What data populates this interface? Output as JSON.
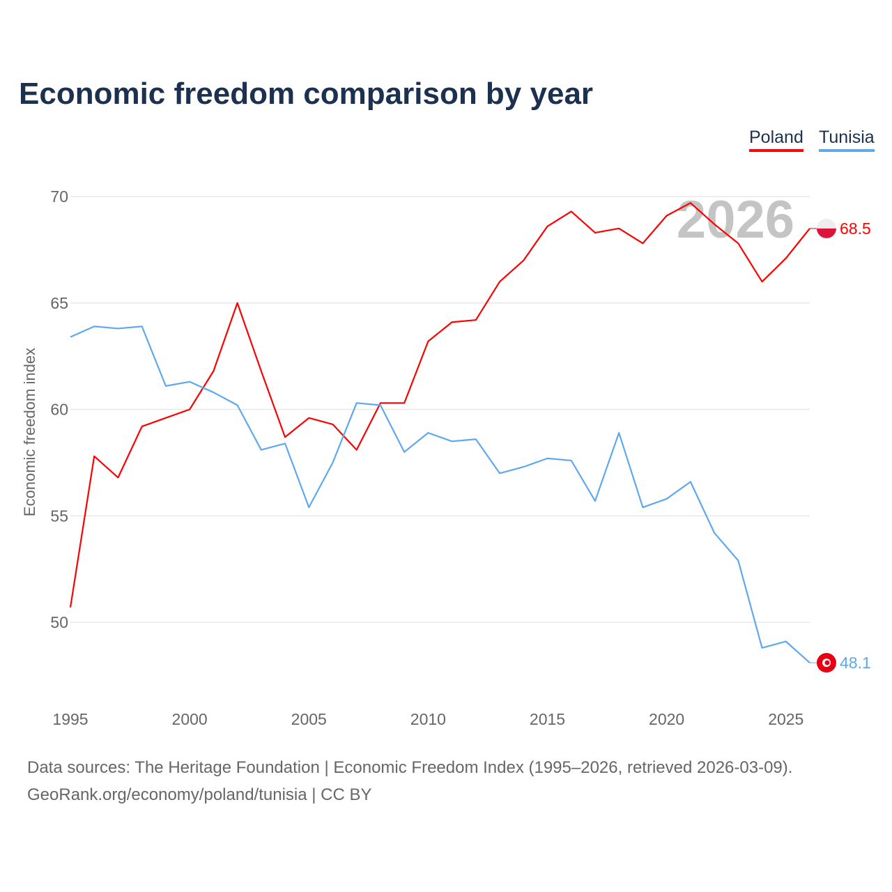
{
  "title": "Economic freedom comparison by year",
  "legend": {
    "poland": "Poland",
    "tunisia": "Tunisia"
  },
  "year_watermark": "2026",
  "end_labels": {
    "poland": "68.5",
    "tunisia": "48.1"
  },
  "source_line1": "Data sources: The Heritage Foundation | Economic Freedom Index (1995–2026, retrieved 2026-03-09).",
  "source_line2": "GeoRank.org/economy/poland/tunisia | CC BY",
  "chart_data": {
    "type": "line",
    "title": "Economic freedom comparison by year",
    "xlabel": "",
    "ylabel": "Economic freedom index",
    "x": [
      1995,
      1996,
      1997,
      1998,
      1999,
      2000,
      2001,
      2002,
      2003,
      2004,
      2005,
      2006,
      2007,
      2008,
      2009,
      2010,
      2011,
      2012,
      2013,
      2014,
      2015,
      2016,
      2017,
      2018,
      2019,
      2020,
      2021,
      2022,
      2023,
      2024,
      2025,
      2026
    ],
    "xlim": [
      1995,
      2026
    ],
    "ylim": [
      46.5,
      70
    ],
    "xticks": [
      1995,
      2000,
      2005,
      2010,
      2015,
      2020,
      2025
    ],
    "yticks": [
      50,
      55,
      60,
      65,
      70
    ],
    "grid": true,
    "legend_position": "top-right",
    "series": [
      {
        "name": "Poland",
        "color": "#ff0000",
        "values": [
          50.7,
          57.8,
          56.8,
          59.2,
          59.6,
          60.0,
          61.8,
          65.0,
          61.8,
          58.7,
          59.6,
          59.3,
          58.1,
          60.3,
          60.3,
          63.2,
          64.1,
          64.2,
          66.0,
          67.0,
          68.6,
          69.3,
          68.3,
          68.5,
          67.8,
          69.1,
          69.7,
          68.7,
          67.8,
          66.0,
          67.1,
          68.5
        ]
      },
      {
        "name": "Tunisia",
        "color": "#5ea8ee",
        "values": [
          63.4,
          63.9,
          63.8,
          63.9,
          61.1,
          61.3,
          60.8,
          60.2,
          58.1,
          58.4,
          55.4,
          57.5,
          60.3,
          60.2,
          58.0,
          58.9,
          58.5,
          58.6,
          57.0,
          57.3,
          57.7,
          57.6,
          55.7,
          58.9,
          55.4,
          55.8,
          56.6,
          54.2,
          52.9,
          48.8,
          49.1,
          48.1
        ]
      }
    ]
  }
}
